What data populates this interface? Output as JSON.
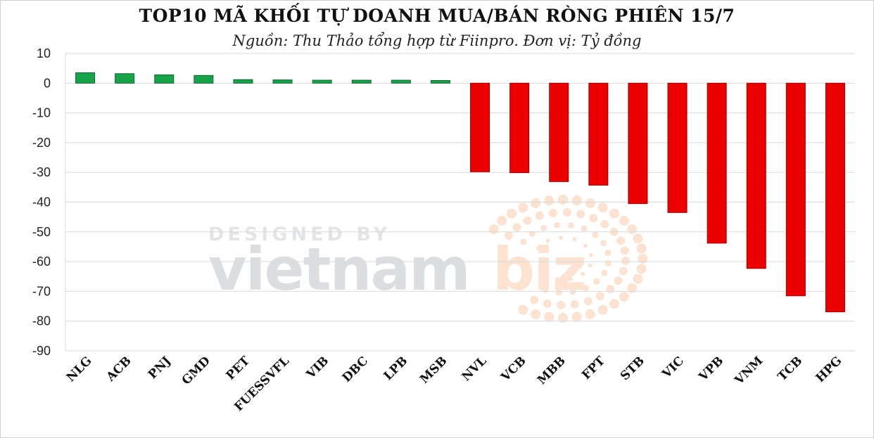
{
  "chart_data": {
    "type": "bar",
    "title": "TOP10 MÃ KHỐI TỰ DOANH MUA/BÁN RÒNG PHIÊN 15/7",
    "subtitle": "Nguồn: Thu Thảo tổng hợp từ Fiinpro. Đơn vị: Tỷ đồng",
    "categories": [
      "NLG",
      "ACB",
      "PNJ",
      "GMD",
      "PET",
      "FUESSVFL",
      "VIB",
      "DBC",
      "LPB",
      "MSB",
      "NVL",
      "VCB",
      "MBB",
      "FPT",
      "STB",
      "VIC",
      "VPB",
      "VNM",
      "TCB",
      "HPG"
    ],
    "values": [
      3.5,
      3.2,
      2.8,
      2.6,
      1.2,
      1.1,
      1.0,
      1.0,
      1.0,
      0.9,
      -29.8,
      -30.1,
      -33.1,
      -34.3,
      -40.5,
      -43.5,
      -53.8,
      -62.3,
      -71.5,
      -76.9
    ],
    "ylim": [
      -90,
      10
    ],
    "yticks": [
      10,
      0,
      -10,
      -20,
      -30,
      -40,
      -50,
      -60,
      -70,
      -80,
      -90
    ],
    "grid": true,
    "colors": {
      "positive": "#16a34a",
      "negative": "#ee0000"
    }
  },
  "watermark": {
    "top": "DESIGNED BY",
    "brand_main": "vietnam",
    "brand_accent": "biz"
  }
}
